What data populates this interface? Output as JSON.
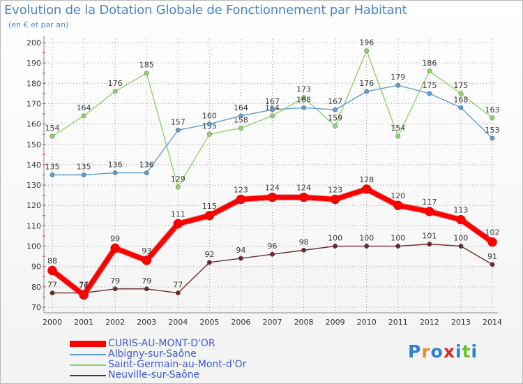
{
  "title": "Evolution de la Dotation Globale de Fonctionnement par Habitant",
  "subtitle": "(en € et par an)",
  "logo": "Proxiti",
  "colors": {
    "CURIS-AU-MONT-D'OR": "#ff0000",
    "Albigny-sur-Saône": "#5f9dcf",
    "Saint-Germain-au-Mont-d'Or": "#8ed46a",
    "Neuville-sur-Saône": "#6e2a2a",
    "grid": "#999999",
    "axis_text": "#333333"
  },
  "chart_data": {
    "type": "line",
    "title": "Evolution de la Dotation Globale de Fonctionnement par Habitant",
    "subtitle": "(en € et par an)",
    "xlabel": "",
    "ylabel": "",
    "ylim": [
      70,
      200
    ],
    "yticks": [
      70,
      80,
      90,
      100,
      110,
      120,
      130,
      140,
      150,
      160,
      170,
      180,
      190,
      200
    ],
    "grid": true,
    "legend_position": "bottom-left",
    "categories": [
      "2000",
      "2001",
      "2002",
      "2003",
      "2004",
      "2005",
      "2006",
      "2007",
      "2008",
      "2009",
      "2010",
      "2011",
      "2012",
      "2013",
      "2014"
    ],
    "series": [
      {
        "name": "Saint-Germain-au-Mont-d'Or",
        "values": [
          154,
          164,
          176,
          185,
          129,
          155,
          158,
          164,
          173,
          159,
          196,
          154,
          186,
          175,
          163
        ]
      },
      {
        "name": "Albigny-sur-Saône",
        "values": [
          135,
          135,
          136,
          136,
          157,
          160,
          164,
          167,
          168,
          167,
          176,
          179,
          175,
          168,
          153
        ]
      },
      {
        "name": "Neuville-sur-Saône",
        "values": [
          77,
          77,
          79,
          79,
          77,
          92,
          94,
          96,
          98,
          100,
          100,
          100,
          101,
          100,
          91
        ]
      },
      {
        "name": "CURIS-AU-MONT-D'OR",
        "values": [
          88,
          76,
          99,
          93,
          111,
          115,
          123,
          124,
          124,
          123,
          128,
          120,
          117,
          113,
          102
        ],
        "highlight": true
      }
    ],
    "legend_order": [
      "CURIS-AU-MONT-D'OR",
      "Albigny-sur-Saône",
      "Saint-Germain-au-Mont-d'Or",
      "Neuville-sur-Saône"
    ]
  }
}
